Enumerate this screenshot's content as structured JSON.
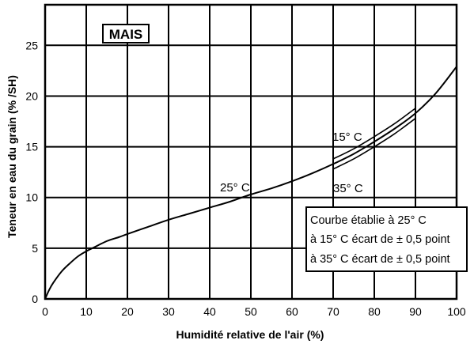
{
  "chart_data": {
    "type": "line",
    "title": "MAIS",
    "xlabel": "Humidité relative de l'air (%)",
    "ylabel": "Teneur en eau du grain (% /SH)",
    "xlim": [
      0,
      100
    ],
    "ylim": [
      0,
      29
    ],
    "x_ticks": [
      0,
      10,
      20,
      30,
      40,
      50,
      60,
      70,
      80,
      90,
      100
    ],
    "y_ticks": [
      0,
      5,
      10,
      15,
      20,
      25
    ],
    "grid": true,
    "series": [
      {
        "name": "25° C",
        "x": [
          0,
          1,
          2,
          4,
          6,
          8,
          10,
          12,
          15,
          18,
          20,
          25,
          30,
          35,
          40,
          45,
          50,
          55,
          60,
          65,
          70,
          75,
          80,
          85,
          90,
          95,
          100
        ],
        "y": [
          0,
          0.9,
          1.6,
          2.7,
          3.5,
          4.2,
          4.7,
          5.1,
          5.7,
          6.1,
          6.4,
          7.1,
          7.8,
          8.4,
          9.0,
          9.6,
          10.3,
          10.9,
          11.6,
          12.4,
          13.3,
          14.3,
          15.5,
          16.8,
          18.3,
          20.3,
          22.9
        ]
      },
      {
        "name": "15° C",
        "x": [
          70,
          75,
          80,
          85,
          90
        ],
        "y": [
          13.8,
          14.8,
          16.0,
          17.3,
          18.8
        ]
      },
      {
        "name": "35° C",
        "x": [
          70,
          75,
          80,
          85,
          90
        ],
        "y": [
          12.8,
          13.8,
          15.0,
          16.3,
          17.8
        ]
      }
    ],
    "annotations": {
      "label_15": "15° C",
      "label_25": "25° C",
      "label_35": "35° C"
    },
    "note": {
      "line1": "Courbe établie à 25° C",
      "line2": "à 15° C écart de ± 0,5 point",
      "line3": "à 35° C écart de ± 0,5 point"
    }
  }
}
